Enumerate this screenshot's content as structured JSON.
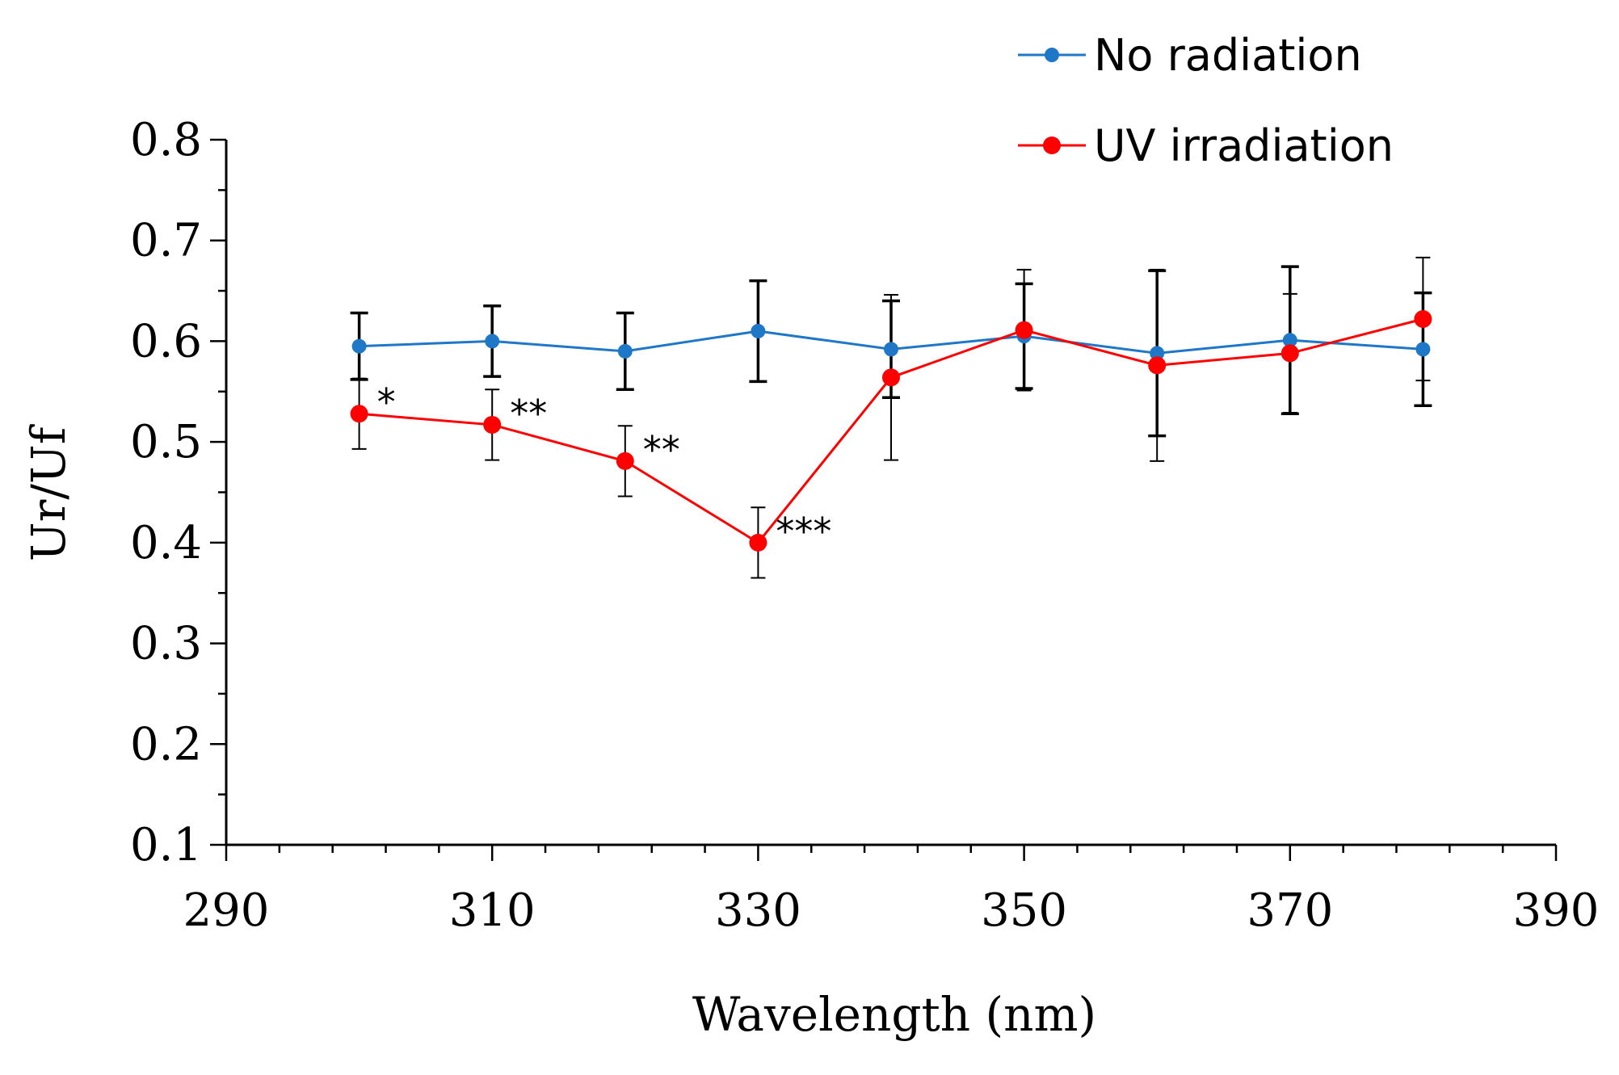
{
  "chart_data": {
    "type": "line",
    "title": "",
    "xlabel": "Wavelength (nm)",
    "ylabel": "Ur/Uf",
    "xlim": [
      290,
      390
    ],
    "ylim": [
      0.1,
      0.8
    ],
    "xticks": [
      290,
      310,
      330,
      350,
      370,
      390
    ],
    "xtick_labels": [
      "290",
      "310",
      "330",
      "350",
      "370",
      "390"
    ],
    "yticks": [
      0.1,
      0.2,
      0.3,
      0.4,
      0.5,
      0.6,
      0.7,
      0.8
    ],
    "ytick_labels": [
      "0.1",
      "0.2",
      "0.3",
      "0.4",
      "0.5",
      "0.6",
      "0.7",
      "0.8"
    ],
    "grid": false,
    "legend_position": "top-right",
    "x": [
      300,
      310,
      320,
      330,
      340,
      350,
      360,
      370,
      380
    ],
    "series": [
      {
        "name": "No radiation",
        "color": "#1f77c8",
        "values": [
          0.595,
          0.6,
          0.59,
          0.61,
          0.592,
          0.605,
          0.588,
          0.601,
          0.592
        ],
        "errors": [
          0.033,
          0.035,
          0.038,
          0.05,
          0.048,
          0.052,
          0.082,
          0.073,
          0.056
        ]
      },
      {
        "name": "UV irradiation",
        "color": "#ff0000",
        "values": [
          0.528,
          0.517,
          0.481,
          0.4,
          0.564,
          0.611,
          0.576,
          0.588,
          0.622
        ],
        "errors": [
          0.035,
          0.035,
          0.035,
          0.035,
          0.082,
          0.06,
          0.095,
          0.059,
          0.061
        ]
      }
    ],
    "annotations": [
      {
        "x": 300,
        "series": 1,
        "text": "*"
      },
      {
        "x": 310,
        "series": 1,
        "text": "**"
      },
      {
        "x": 320,
        "series": 1,
        "text": "**"
      },
      {
        "x": 330,
        "series": 1,
        "text": "***"
      }
    ]
  }
}
